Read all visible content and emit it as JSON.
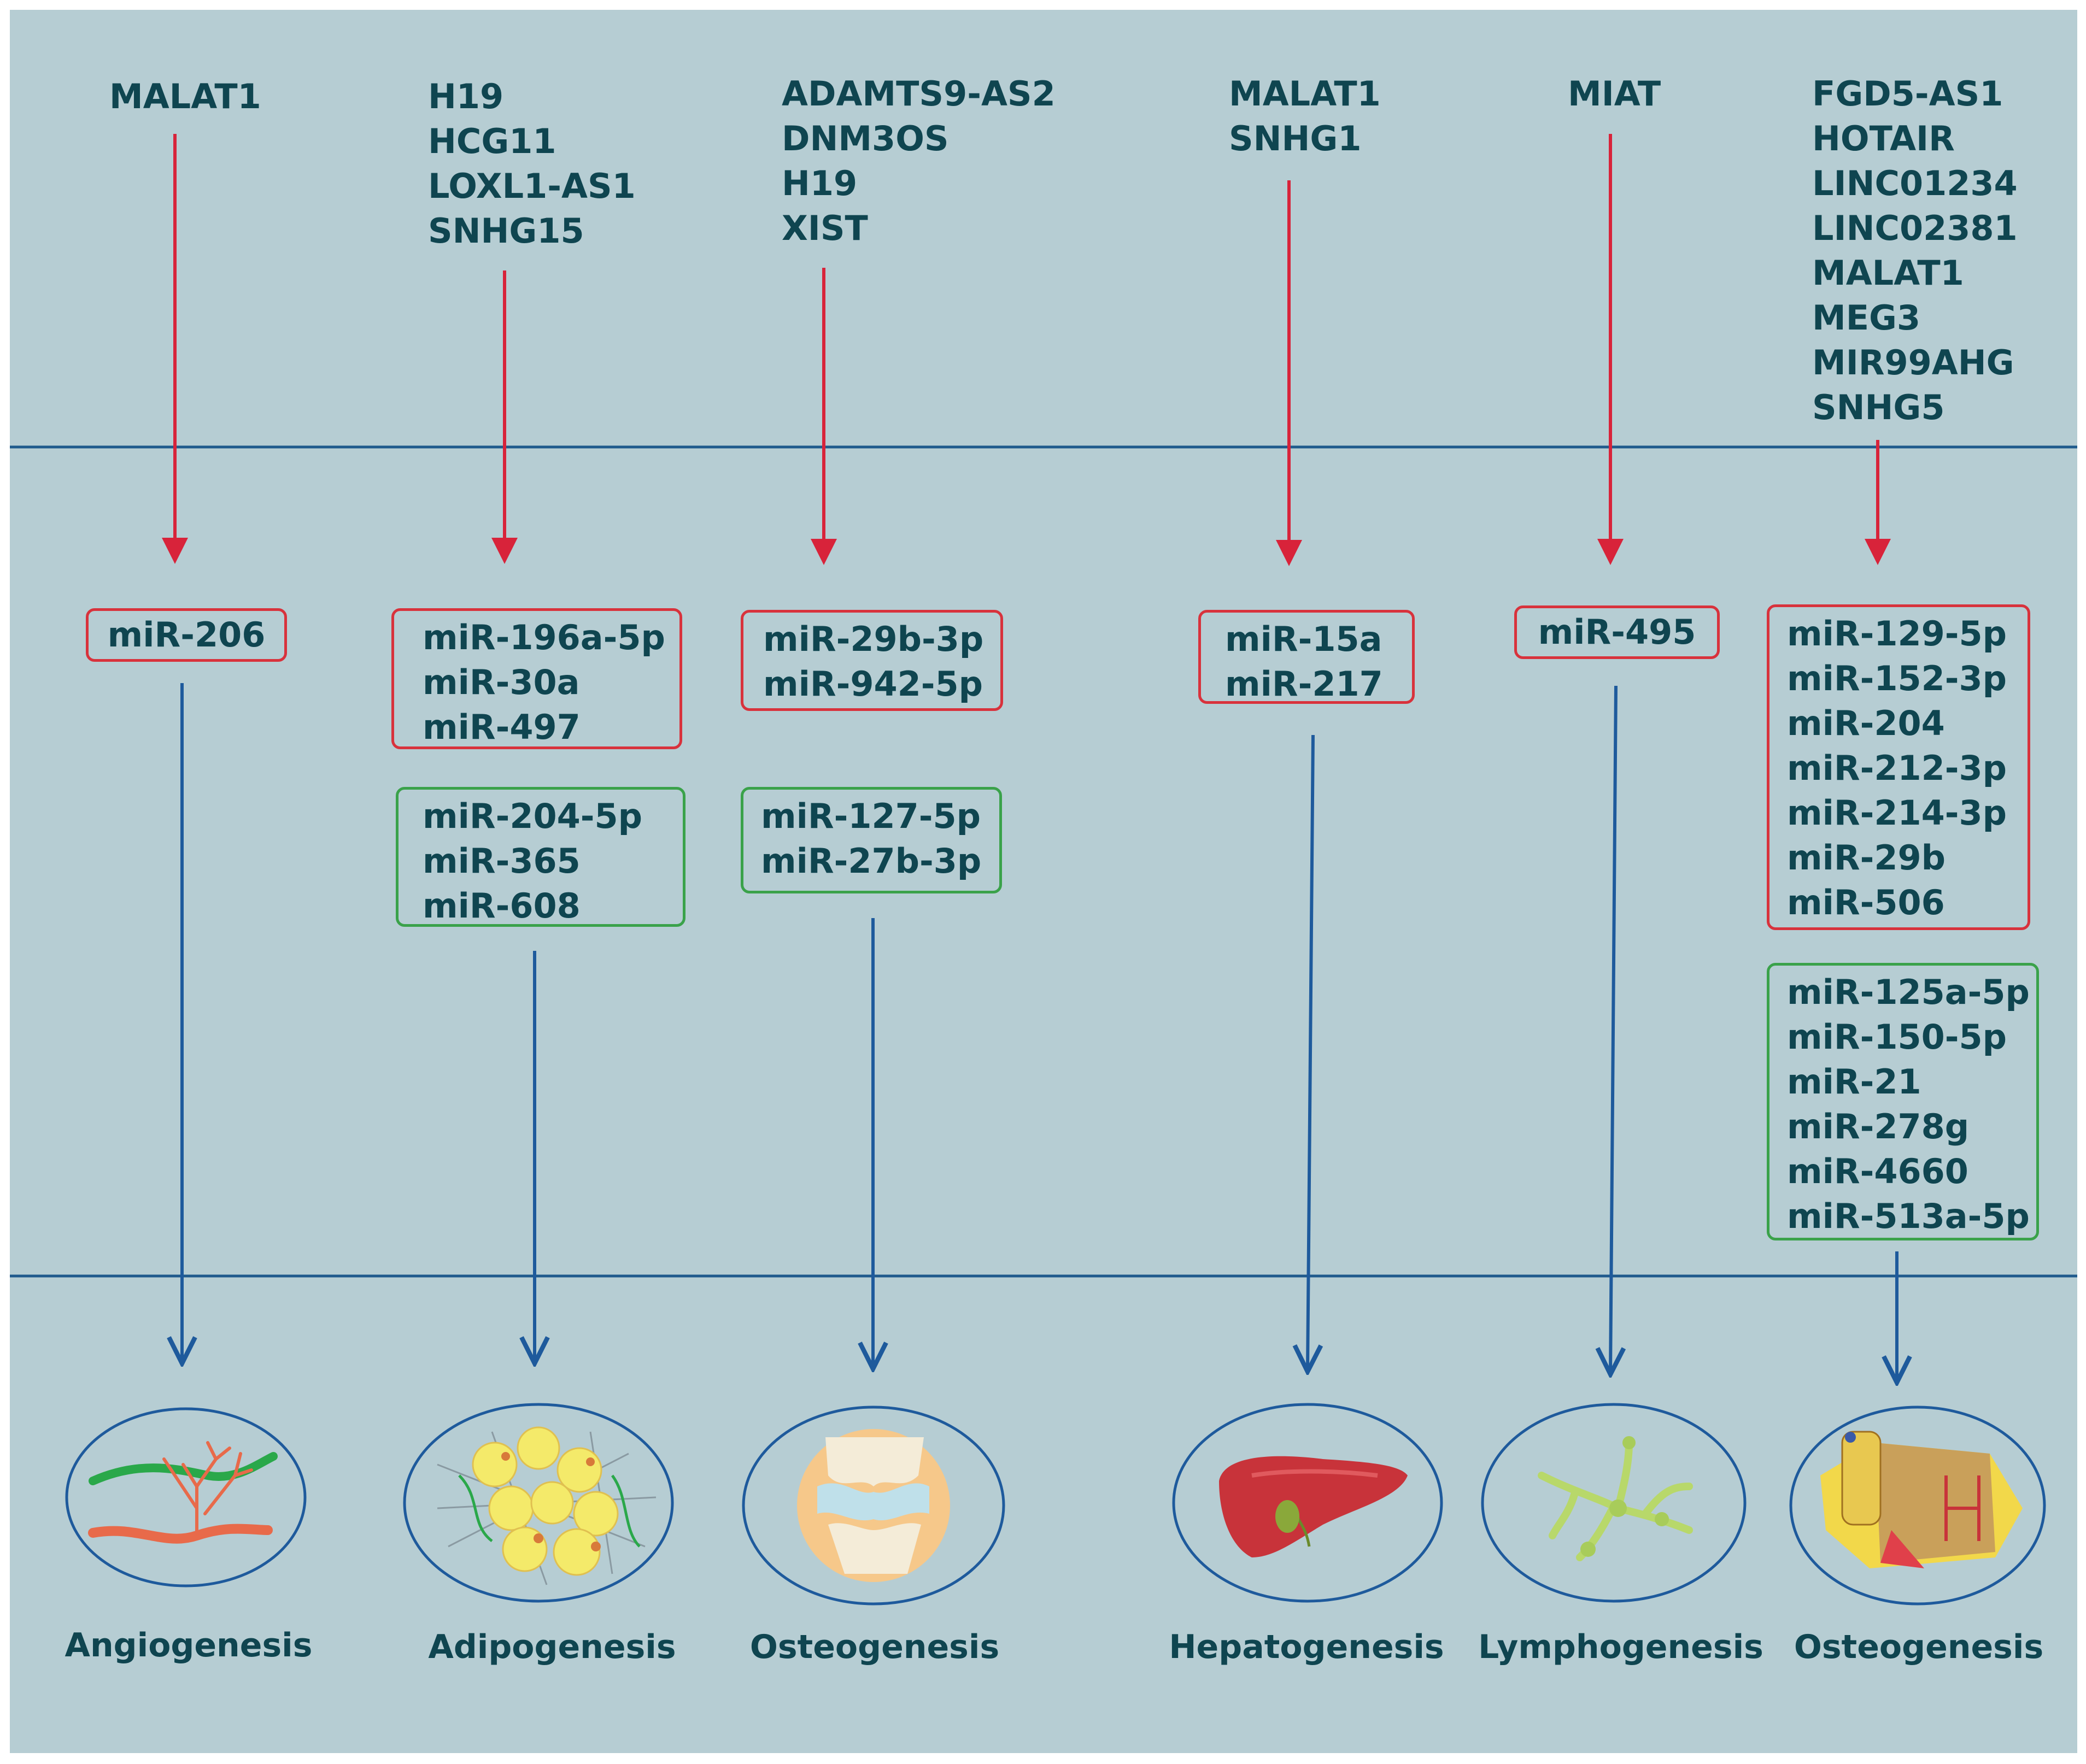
{
  "columns": [
    {
      "lncrnas": [
        "MALAT1"
      ],
      "inhibit_mirnas": [
        "miR-206"
      ],
      "promote_mirnas": [],
      "process": "Angiogenesis",
      "icon": "blood-vessels-icon"
    },
    {
      "lncrnas": [
        "H19",
        "HCG11",
        "LOXL1-AS1",
        "SNHG15"
      ],
      "inhibit_mirnas": [
        "miR-196a-5p",
        "miR-30a",
        "miR-497"
      ],
      "promote_mirnas": [
        "miR-204-5p",
        "miR-365",
        "miR-608"
      ],
      "process": "Adipogenesis",
      "icon": "fat-cells-icon"
    },
    {
      "lncrnas": [
        "ADAMTS9-AS2",
        "DNM3OS",
        "H19",
        "XIST"
      ],
      "inhibit_mirnas": [
        "miR-29b-3p",
        "miR-942-5p"
      ],
      "promote_mirnas": [
        "miR-127-5p",
        "miR-27b-3p"
      ],
      "process": "Osteogenesis",
      "icon": "knee-joint-icon"
    },
    {
      "lncrnas": [
        "MALAT1",
        "SNHG1"
      ],
      "inhibit_mirnas": [
        "miR-15a",
        "miR-217"
      ],
      "promote_mirnas": [],
      "process": "Hepatogenesis",
      "icon": "liver-icon"
    },
    {
      "lncrnas": [
        "MIAT"
      ],
      "inhibit_mirnas": [
        "miR-495"
      ],
      "promote_mirnas": [],
      "process": "Lymphogenesis",
      "icon": "lymph-vessel-icon"
    },
    {
      "lncrnas": [
        "FGD5-AS1",
        "HOTAIR",
        "LINC01234",
        "LINC02381",
        "MALAT1",
        "MEG3",
        "MIR99AHG",
        "SNHG5"
      ],
      "inhibit_mirnas": [
        "miR-129-5p",
        "miR-152-3p",
        "miR-204",
        "miR-212-3p",
        "miR-214-3p",
        "miR-29b",
        "miR-506"
      ],
      "promote_mirnas": [
        "miR-125a-5p",
        "miR-150-5p",
        "miR-21",
        "miR-278g",
        "miR-4660",
        "miR-513a-5p"
      ],
      "process": "Osteogenesis",
      "icon": "bone-section-icon"
    }
  ],
  "colors": {
    "background": "#b6cdd3",
    "text": "#0f4550",
    "inhibit_arrow": "#d8233a",
    "promote_arrow": "#1e5a9c",
    "inhibit_box": "#d8323c",
    "promote_box": "#3aa24a",
    "divider": "#1f5a8c"
  }
}
